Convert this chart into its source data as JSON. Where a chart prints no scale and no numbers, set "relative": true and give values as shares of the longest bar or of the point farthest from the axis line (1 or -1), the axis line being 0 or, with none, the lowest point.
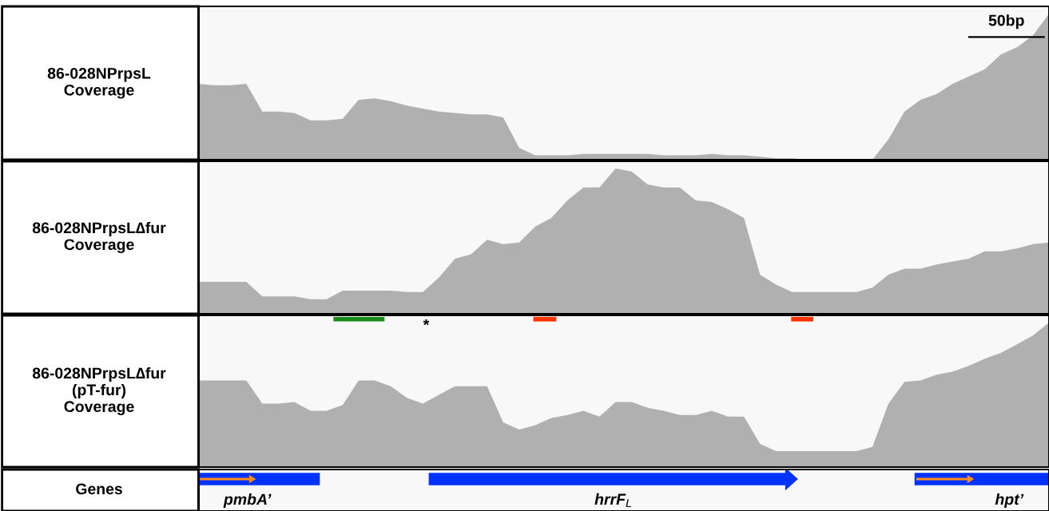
{
  "chart_data": [
    {
      "type": "area",
      "ylabel": "86-028NPrpsL\nCoverage",
      "relative": true,
      "color": "#b0b0b0",
      "annotations": [
        "50bp"
      ],
      "categories": [
        null,
        null,
        null,
        null,
        null,
        null,
        null,
        null,
        null,
        null,
        null,
        null,
        null,
        null,
        null,
        null,
        null,
        null,
        null,
        null,
        null,
        null,
        null,
        null,
        null,
        null,
        null,
        null,
        null,
        null,
        null,
        null,
        null,
        null,
        null,
        null,
        null,
        null,
        null,
        null,
        null,
        null,
        null,
        null,
        null,
        null,
        null,
        null,
        null,
        null,
        null,
        null,
        null,
        null
      ],
      "values": [
        0.52,
        0.51,
        0.51,
        0.52,
        0.33,
        0.33,
        0.32,
        0.27,
        0.27,
        0.28,
        0.41,
        0.42,
        0.4,
        0.37,
        0.35,
        0.33,
        0.32,
        0.31,
        0.31,
        0.29,
        0.08,
        0.03,
        0.03,
        0.03,
        0.04,
        0.04,
        0.04,
        0.04,
        0.04,
        0.03,
        0.03,
        0.03,
        0.04,
        0.03,
        0.03,
        0.02,
        0.01,
        0.01,
        0,
        0,
        0,
        0,
        0,
        0.14,
        0.33,
        0.41,
        0.45,
        0.52,
        0.57,
        0.62,
        0.72,
        0.77,
        0.85,
        1
      ]
    },
    {
      "type": "area",
      "ylabel": "86-028NPrpsL∆fur\nCoverage",
      "relative": true,
      "color": "#b0b0b0",
      "categories": [
        null,
        null,
        null,
        null,
        null,
        null,
        null,
        null,
        null,
        null,
        null,
        null,
        null,
        null,
        null,
        null,
        null,
        null,
        null,
        null,
        null,
        null,
        null,
        null,
        null,
        null,
        null,
        null,
        null,
        null,
        null,
        null,
        null,
        null,
        null,
        null,
        null,
        null,
        null,
        null,
        null,
        null,
        null,
        null,
        null,
        null,
        null,
        null,
        null,
        null,
        null,
        null,
        null,
        null
      ],
      "values": [
        0.22,
        0.22,
        0.22,
        0.22,
        0.12,
        0.12,
        0.12,
        0.1,
        0.1,
        0.16,
        0.16,
        0.16,
        0.16,
        0.15,
        0.15,
        0.25,
        0.38,
        0.41,
        0.51,
        0.48,
        0.49,
        0.6,
        0.66,
        0.78,
        0.87,
        0.87,
        1,
        0.98,
        0.89,
        0.87,
        0.87,
        0.78,
        0.77,
        0.72,
        0.66,
        0.27,
        0.2,
        0.15,
        0.15,
        0.15,
        0.15,
        0.15,
        0.18,
        0.27,
        0.31,
        0.31,
        0.34,
        0.36,
        0.38,
        0.43,
        0.43,
        0.45,
        0.48,
        0.49
      ]
    },
    {
      "type": "area",
      "ylabel": "86-028NPrpsL∆fur\n(pT-fur)\nCoverage",
      "relative": true,
      "color": "#b0b0b0",
      "annotations": [
        "*"
      ],
      "categories": [
        null,
        null,
        null,
        null,
        null,
        null,
        null,
        null,
        null,
        null,
        null,
        null,
        null,
        null,
        null,
        null,
        null,
        null,
        null,
        null,
        null,
        null,
        null,
        null,
        null,
        null,
        null,
        null,
        null,
        null,
        null,
        null,
        null,
        null,
        null,
        null,
        null,
        null,
        null,
        null,
        null,
        null,
        null,
        null,
        null,
        null,
        null,
        null,
        null,
        null,
        null,
        null,
        null,
        null
      ],
      "values": [
        0.6,
        0.6,
        0.6,
        0.6,
        0.44,
        0.44,
        0.45,
        0.39,
        0.39,
        0.43,
        0.6,
        0.6,
        0.56,
        0.48,
        0.44,
        0.5,
        0.56,
        0.56,
        0.56,
        0.31,
        0.26,
        0.29,
        0.34,
        0.36,
        0.39,
        0.35,
        0.45,
        0.45,
        0.41,
        0.39,
        0.36,
        0.36,
        0.39,
        0.35,
        0.35,
        0.16,
        0.11,
        0.11,
        0.11,
        0.11,
        0.11,
        0.11,
        0.14,
        0.44,
        0.59,
        0.6,
        0.64,
        0.66,
        0.7,
        0.75,
        0.79,
        0.85,
        0.91,
        1
      ]
    },
    {
      "type": "other",
      "ylabel": "Genes",
      "annotations": [
        "pmbA’",
        "hrrF$_{L}$",
        "hpt’"
      ]
    }
  ]
}
